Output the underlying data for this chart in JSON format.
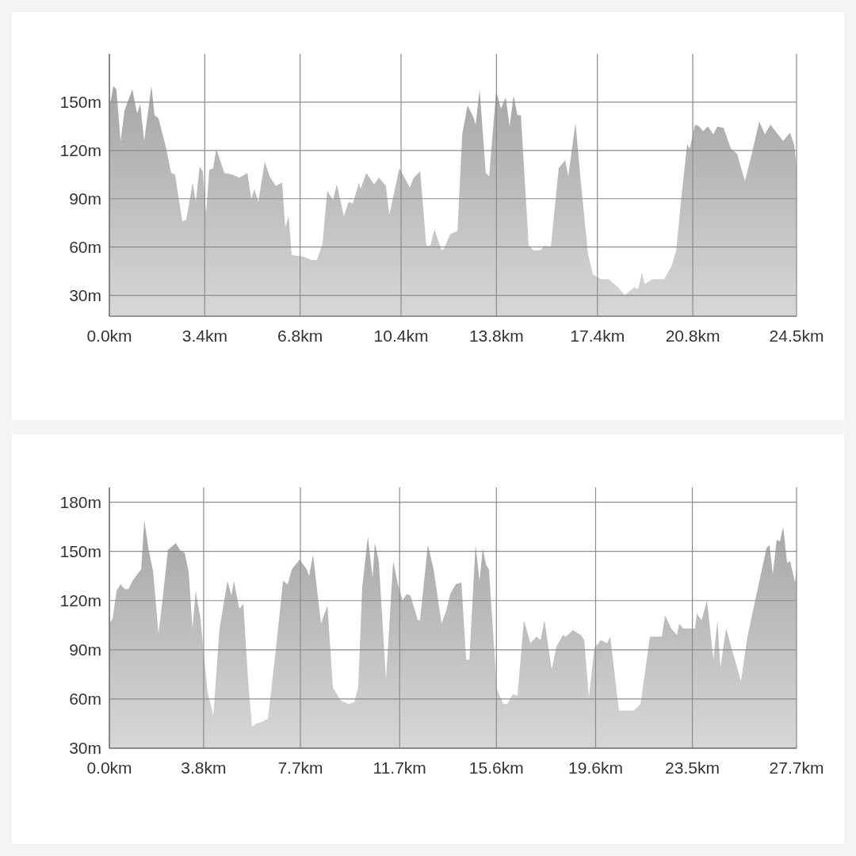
{
  "chart_data": [
    {
      "type": "area",
      "color": "#a6a6a6",
      "grid": true,
      "x": [
        0,
        0.14,
        0.25,
        0.4,
        0.54,
        0.82,
        0.99,
        1.1,
        1.24,
        1.5,
        1.61,
        1.75,
        2.03,
        2.2,
        2.34,
        2.6,
        2.74,
        2.97,
        3.08,
        3.22,
        3.33,
        3.45,
        3.56,
        3.7,
        3.81,
        4.1,
        4.38,
        4.63,
        4.92,
        5.06,
        5.17,
        5.31,
        5.54,
        5.71,
        5.93,
        6.16,
        6.27,
        6.39,
        6.5,
        6.92,
        7.21,
        7.4,
        7.6,
        7.77,
        7.97,
        8.11,
        8.36,
        8.53,
        8.68,
        8.9,
        8.96,
        9.16,
        9.44,
        9.61,
        9.86,
        9.98,
        10.34,
        10.71,
        10.85,
        11.08,
        11.3,
        11.45,
        11.59,
        11.84,
        11.93,
        12.15,
        12.41,
        12.58,
        12.77,
        12.97,
        13.06,
        13.2,
        13.42,
        13.54,
        13.79,
        13.96,
        14.13,
        14.27,
        14.41,
        14.55,
        14.67,
        14.95,
        15.12,
        15.37,
        15.51,
        15.74,
        16.02,
        16.25,
        16.36,
        16.62,
        16.81,
        17.07,
        17.24,
        17.52,
        17.8,
        18.14,
        18.37,
        18.71,
        18.85,
        18.99,
        19.08,
        19.36,
        19.78,
        20.04,
        20.21,
        20.4,
        20.6,
        20.69,
        20.88,
        21.03,
        21.17,
        21.34,
        21.53,
        21.68,
        21.9,
        22.16,
        22.38,
        22.66,
        22.89,
        23.17,
        23.37,
        23.57,
        23.79,
        24.02,
        24.27,
        24.42,
        24.5
      ],
      "values": [
        146,
        160,
        158,
        126,
        145,
        158,
        143,
        149,
        126,
        160,
        142,
        140,
        121,
        106,
        105,
        76,
        77,
        100,
        88,
        110,
        107,
        81,
        108,
        109,
        121,
        106,
        105,
        103,
        106,
        90,
        96,
        88,
        113,
        104,
        98,
        100,
        72,
        79,
        55,
        54,
        52,
        52,
        62,
        95,
        89,
        99,
        79,
        88,
        87,
        100,
        96,
        106,
        99,
        103,
        98,
        80,
        109,
        97,
        103,
        107,
        61,
        61,
        71,
        58,
        59,
        68,
        70,
        130,
        148,
        141,
        136,
        158,
        106,
        104,
        157,
        146,
        153,
        135,
        154,
        142,
        142,
        61,
        58,
        58,
        61,
        60,
        109,
        114,
        104,
        137,
        100,
        55,
        43,
        40,
        40,
        35,
        30,
        35,
        34,
        44,
        37,
        40,
        40,
        48,
        58,
        92,
        124,
        121,
        136,
        135,
        132,
        135,
        130,
        135,
        134,
        121,
        118,
        101,
        117,
        138,
        130,
        136,
        131,
        126,
        131,
        123,
        110
      ],
      "xlim": [
        0,
        24.5
      ],
      "xticks": [
        {
          "value": 0,
          "label": "0.0km"
        },
        {
          "value": 3.4,
          "label": "3.4km"
        },
        {
          "value": 6.8,
          "label": "6.8km"
        },
        {
          "value": 10.4,
          "label": "10.4km"
        },
        {
          "value": 13.8,
          "label": "13.8km"
        },
        {
          "value": 17.4,
          "label": "17.4km"
        },
        {
          "value": 20.8,
          "label": "20.8km"
        },
        {
          "value": 24.5,
          "label": "24.5km"
        }
      ],
      "ylim": [
        17,
        180
      ],
      "yticks": [
        {
          "value": 30,
          "label": "30m"
        },
        {
          "value": 60,
          "label": "60m"
        },
        {
          "value": 90,
          "label": "90m"
        },
        {
          "value": 120,
          "label": "120m"
        },
        {
          "value": 150,
          "label": "150m"
        }
      ]
    },
    {
      "type": "area",
      "color": "#a6a6a6",
      "grid": true,
      "x": [
        0,
        0.13,
        0.29,
        0.45,
        0.61,
        0.77,
        0.93,
        1.12,
        1.28,
        1.41,
        1.57,
        1.76,
        1.98,
        2.14,
        2.36,
        2.68,
        2.84,
        3.04,
        3.2,
        3.35,
        3.48,
        3.67,
        3.96,
        4.19,
        4.44,
        4.76,
        4.92,
        5.02,
        5.24,
        5.4,
        5.59,
        5.75,
        5.91,
        6.13,
        6.39,
        6.68,
        7,
        7.19,
        7.35,
        7.67,
        7.96,
        8.05,
        8.21,
        8.53,
        8.79,
        9.01,
        9.33,
        9.65,
        9.87,
        10.03,
        10.19,
        10.42,
        10.61,
        10.7,
        10.86,
        11.15,
        11.44,
        11.63,
        11.82,
        11.98,
        12.14,
        12.43,
        12.52,
        12.84,
        13.07,
        13.39,
        13.58,
        13.74,
        13.96,
        14.19,
        14.38,
        14.51,
        14.76,
        14.92,
        15.05,
        15.18,
        15.3,
        15.62,
        15.88,
        16.04,
        16.26,
        16.45,
        16.71,
        16.97,
        17.22,
        17.38,
        17.54,
        17.83,
        18.02,
        18.28,
        18.4,
        18.69,
        19.01,
        19.14,
        19.33,
        19.55,
        19.81,
        20.06,
        20.19,
        20.54,
        20.83,
        21.15,
        21.41,
        21.79,
        22.01,
        22.27,
        22.4,
        22.65,
        22.88,
        22.97,
        23.13,
        23.39,
        23.61,
        23.68,
        23.87,
        24.09,
        24.35,
        24.51,
        24.63,
        24.86,
        25.08,
        25.46,
        25.72,
        26.1,
        26.49,
        26.61,
        26.74,
        26.9,
        27.03,
        27.16,
        27.32,
        27.44,
        27.64,
        27.7
      ],
      "values": [
        106,
        109,
        126,
        130,
        127,
        127,
        132,
        136,
        139,
        169,
        152,
        138,
        100,
        120,
        151,
        155,
        151,
        149,
        137,
        103,
        126,
        109,
        64,
        50,
        103,
        132,
        123,
        132,
        115,
        118,
        72,
        43,
        45,
        46,
        48,
        86,
        132,
        130,
        139,
        145,
        139,
        135,
        148,
        106,
        117,
        67,
        59,
        57,
        58,
        67,
        128,
        159,
        134,
        155,
        144,
        72,
        144,
        130,
        120,
        124,
        123,
        108,
        108,
        154,
        139,
        106,
        114,
        124,
        130,
        131,
        84,
        84,
        154,
        132,
        152,
        142,
        139,
        66,
        57,
        57,
        63,
        62,
        108,
        94,
        98,
        96,
        108,
        78,
        92,
        99,
        98,
        102,
        99,
        96,
        61,
        91,
        96,
        94,
        98,
        53,
        53,
        53,
        57,
        98,
        98,
        98,
        111,
        103,
        99,
        106,
        103,
        103,
        103,
        112,
        108,
        120,
        84,
        108,
        79,
        103,
        91,
        71,
        98,
        125,
        152,
        154,
        136,
        157,
        156,
        165,
        143,
        144,
        131,
        140
      ],
      "xlim": [
        0,
        27.7
      ],
      "xticks": [
        {
          "value": 0,
          "label": "0.0km"
        },
        {
          "value": 3.8,
          "label": "3.8km"
        },
        {
          "value": 7.7,
          "label": "7.7km"
        },
        {
          "value": 11.7,
          "label": "11.7km"
        },
        {
          "value": 15.6,
          "label": "15.6km"
        },
        {
          "value": 19.6,
          "label": "19.6km"
        },
        {
          "value": 23.5,
          "label": "23.5km"
        },
        {
          "value": 27.7,
          "label": "27.7km"
        }
      ],
      "ylim": [
        30,
        189
      ],
      "yticks": [
        {
          "value": 30,
          "label": "30m"
        },
        {
          "value": 60,
          "label": "60m"
        },
        {
          "value": 90,
          "label": "90m"
        },
        {
          "value": 120,
          "label": "120m"
        },
        {
          "value": 150,
          "label": "150m"
        },
        {
          "value": 180,
          "label": "180m"
        }
      ]
    }
  ]
}
